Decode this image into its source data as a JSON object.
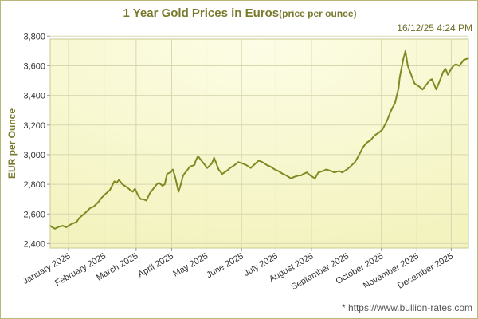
{
  "title": "1 Year Gold Prices in Euros",
  "subtitle": "(price per ounce)",
  "timestamp": "16/12/25 4:24 PM",
  "source": "* https://www.bullion-rates.com",
  "colors": {
    "line": "#7f8a22",
    "title": "#7a7a2e",
    "grid": "#d8d8b0",
    "plot_bg_light": "#fdfde6",
    "plot_bg_dark": "#f3f3c0"
  },
  "chart_data": {
    "type": "line",
    "title": "1 Year Gold Prices in Euros",
    "subtitle": "(price per ounce)",
    "xlabel": "",
    "ylabel": "EUR per Ounce",
    "ylim": [
      2370,
      3780
    ],
    "yticks": [
      2400,
      2600,
      2800,
      3000,
      3200,
      3400,
      3600,
      3800
    ],
    "ytick_labels": [
      "2,400",
      "2,600",
      "2,800",
      "3,000",
      "3,200",
      "3,400",
      "3,600",
      "3,800"
    ],
    "xlim": [
      "2024-12-16",
      "2025-12-16"
    ],
    "xticks": [
      "2025-01-01",
      "2025-02-01",
      "2025-03-01",
      "2025-04-01",
      "2025-05-01",
      "2025-06-01",
      "2025-07-01",
      "2025-08-01",
      "2025-09-01",
      "2025-10-01",
      "2025-11-01",
      "2025-12-01"
    ],
    "xtick_labels": [
      "January 2025",
      "February 2025",
      "March 2025",
      "April 2025",
      "May 2025",
      "June 2025",
      "July 2025",
      "August 2025",
      "September 2025",
      "October 2025",
      "November 2025",
      "December 2025"
    ],
    "grid": true,
    "legend": "none",
    "series": [
      {
        "x": [
          "2024-12-16",
          "2024-12-18",
          "2024-12-20",
          "2024-12-24",
          "2024-12-27",
          "2024-12-30",
          "2025-01-03",
          "2025-01-06",
          "2025-01-08",
          "2025-01-10",
          "2025-01-13",
          "2025-01-16",
          "2025-01-20",
          "2025-01-23",
          "2025-01-27",
          "2025-01-30",
          "2025-02-03",
          "2025-02-06",
          "2025-02-10",
          "2025-02-12",
          "2025-02-14",
          "2025-02-17",
          "2025-02-19",
          "2025-02-21",
          "2025-02-24",
          "2025-02-26",
          "2025-02-28",
          "2025-03-03",
          "2025-03-05",
          "2025-03-07",
          "2025-03-10",
          "2025-03-13",
          "2025-03-17",
          "2025-03-19",
          "2025-03-21",
          "2025-03-24",
          "2025-03-26",
          "2025-03-28",
          "2025-03-31",
          "2025-04-02",
          "2025-04-04",
          "2025-04-07",
          "2025-04-09",
          "2025-04-11",
          "2025-04-14",
          "2025-04-17",
          "2025-04-21",
          "2025-04-22",
          "2025-04-24",
          "2025-04-28",
          "2025-04-30",
          "2025-05-02",
          "2025-05-06",
          "2025-05-08",
          "2025-05-12",
          "2025-05-15",
          "2025-05-19",
          "2025-05-22",
          "2025-05-26",
          "2025-05-29",
          "2025-06-02",
          "2025-06-05",
          "2025-06-09",
          "2025-06-13",
          "2025-06-16",
          "2025-06-19",
          "2025-06-23",
          "2025-06-26",
          "2025-06-30",
          "2025-07-03",
          "2025-07-07",
          "2025-07-10",
          "2025-07-14",
          "2025-07-17",
          "2025-07-21",
          "2025-07-23",
          "2025-07-25",
          "2025-07-28",
          "2025-07-31",
          "2025-08-04",
          "2025-08-07",
          "2025-08-11",
          "2025-08-14",
          "2025-08-18",
          "2025-08-21",
          "2025-08-25",
          "2025-08-28",
          "2025-09-01",
          "2025-09-04",
          "2025-09-08",
          "2025-09-11",
          "2025-09-15",
          "2025-09-18",
          "2025-09-22",
          "2025-09-25",
          "2025-09-29",
          "2025-10-02",
          "2025-10-06",
          "2025-10-09",
          "2025-10-13",
          "2025-10-16",
          "2025-10-17",
          "2025-10-20",
          "2025-10-22",
          "2025-10-24",
          "2025-10-28",
          "2025-10-30",
          "2025-11-03",
          "2025-11-06",
          "2025-11-10",
          "2025-11-12",
          "2025-11-14",
          "2025-11-18",
          "2025-11-20",
          "2025-11-24",
          "2025-11-26",
          "2025-11-28",
          "2025-12-01",
          "2025-12-03",
          "2025-12-05",
          "2025-12-08",
          "2025-12-10",
          "2025-12-12",
          "2025-12-16"
        ],
        "values": [
          2520,
          2510,
          2500,
          2515,
          2520,
          2510,
          2530,
          2540,
          2545,
          2570,
          2590,
          2610,
          2640,
          2650,
          2680,
          2710,
          2740,
          2760,
          2820,
          2810,
          2830,
          2800,
          2790,
          2780,
          2760,
          2750,
          2770,
          2720,
          2700,
          2700,
          2690,
          2740,
          2780,
          2800,
          2810,
          2790,
          2800,
          2870,
          2880,
          2900,
          2850,
          2750,
          2800,
          2860,
          2890,
          2920,
          2930,
          2960,
          2990,
          2950,
          2930,
          2910,
          2940,
          2980,
          2900,
          2870,
          2890,
          2910,
          2930,
          2950,
          2940,
          2930,
          2910,
          2940,
          2960,
          2950,
          2930,
          2920,
          2900,
          2890,
          2870,
          2860,
          2840,
          2850,
          2860,
          2860,
          2870,
          2880,
          2860,
          2840,
          2880,
          2890,
          2900,
          2890,
          2880,
          2890,
          2880,
          2900,
          2920,
          2950,
          2990,
          3050,
          3080,
          3100,
          3130,
          3150,
          3170,
          3230,
          3290,
          3350,
          3450,
          3520,
          3640,
          3700,
          3600,
          3520,
          3480,
          3460,
          3440,
          3480,
          3500,
          3510,
          3440,
          3480,
          3560,
          3580,
          3540,
          3580,
          3600,
          3610,
          3600,
          3620,
          3640,
          3650
        ]
      }
    ]
  }
}
